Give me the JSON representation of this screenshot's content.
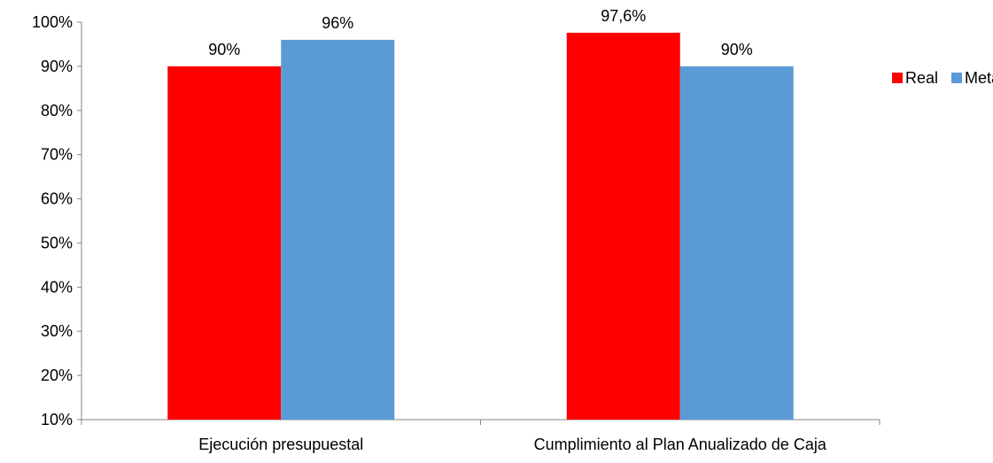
{
  "chart_data": {
    "type": "bar",
    "title": "",
    "xlabel": "",
    "ylabel": "",
    "categories": [
      "Ejecución presupuestal",
      "Cumplimiento al Plan Anualizado de Caja"
    ],
    "series": [
      {
        "name": "Real",
        "color": "#FF0000",
        "values": [
          90,
          97.6
        ],
        "data_labels": [
          "90%",
          "97,6%"
        ]
      },
      {
        "name": "Meta",
        "color": "#5B9BD5",
        "values": [
          96,
          90
        ],
        "data_labels": [
          "96%",
          "90%"
        ]
      }
    ],
    "ylim": [
      10,
      100
    ],
    "yticks": [
      10,
      20,
      30,
      40,
      50,
      60,
      70,
      80,
      90,
      100
    ],
    "ytick_labels": [
      "10%",
      "20%",
      "30%",
      "40%",
      "50%",
      "60%",
      "70%",
      "80%",
      "90%",
      "100%"
    ],
    "grid": false,
    "legend_position": "right"
  }
}
